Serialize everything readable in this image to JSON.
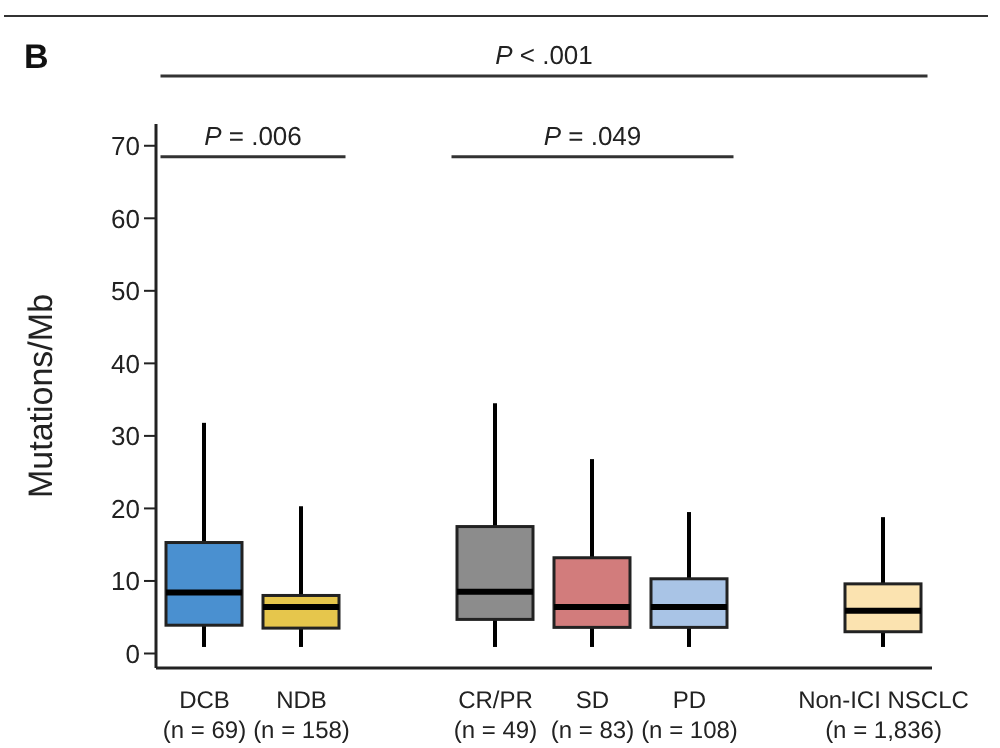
{
  "chart_data": {
    "type": "box",
    "ylabel": "Mutations/Mb",
    "categories": [
      "DCB\n(n = 69)",
      "NDB\n(n = 158)",
      null,
      "CR/PR\n(n = 49)",
      "SD\n(n = 83)",
      "PD\n(n = 108)",
      null,
      "Non-ICI NSCLC\n(n = 1,836)"
    ],
    "boxes": [
      {
        "low": 0.9,
        "q1": 3.9,
        "median": 8.4,
        "q3": 15.3,
        "high": 31.8
      },
      {
        "low": 0.9,
        "q1": 3.5,
        "median": 6.4,
        "q3": 8,
        "high": 20.3
      },
      null,
      {
        "low": 0.9,
        "q1": 4.7,
        "median": 8.5,
        "q3": 17.5,
        "high": 34.5
      },
      {
        "low": 0.9,
        "q1": 3.6,
        "median": 6.4,
        "q3": 13.2,
        "high": 26.8
      },
      {
        "low": 0.9,
        "q1": 3.6,
        "median": 6.4,
        "q3": 10.3,
        "high": 19.5
      },
      null,
      {
        "low": 0.9,
        "q1": 3,
        "median": 5.9,
        "q3": 9.6,
        "high": 18.8
      }
    ],
    "colors": [
      "#4a90d0",
      "#e6c64c",
      null,
      "#8c8c8c",
      "#d27c7c",
      "#a9c4e6",
      null,
      "#fbe3b0"
    ],
    "ylim": [
      -2,
      73
    ],
    "yticks": [
      0,
      10,
      20,
      30,
      40,
      50,
      60,
      70
    ],
    "annotations": [
      "B",
      "P < .001",
      "P = .006",
      "P = .049"
    ]
  }
}
